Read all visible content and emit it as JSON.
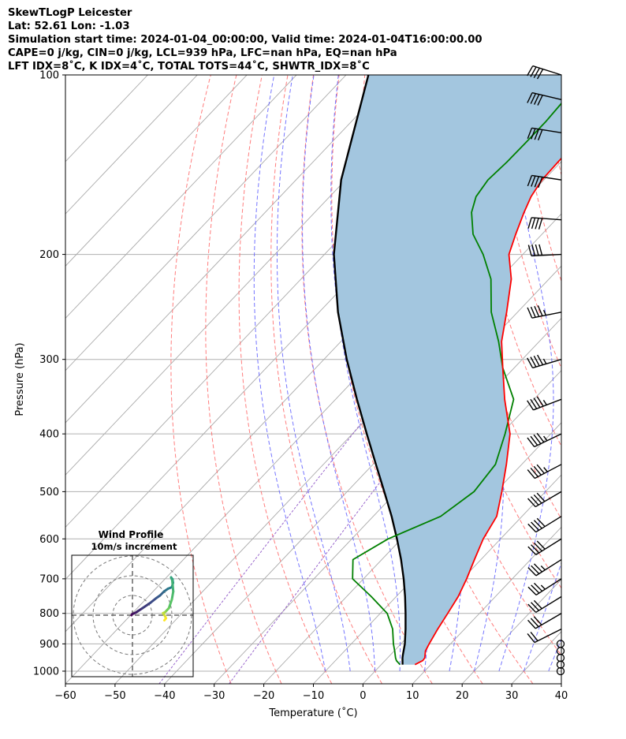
{
  "header": {
    "line1": "SkewTLogP Leicester",
    "line2": "Lat: 52.61   Lon: -1.03",
    "line3": "Simulation start time: 2024-01-04_00:00:00, Valid time: 2024-01-04T16:00:00.00",
    "line4": "CAPE=0 j/kg, CIN=0 j/kg, LCL=939 hPa, LFC=nan hPa, EQ=nan hPa",
    "line5": "LFT IDX=8˚C, K IDX=4˚C, TOTAL TOTS=44˚C, SHWTR_IDX=8˚C"
  },
  "chart_data": [
    {
      "type": "line",
      "subtype": "skew-t log-p",
      "xlabel": "Temperature (˚C)",
      "ylabel": "Pressure (hPa)",
      "xlim": [
        -60,
        40
      ],
      "ylim": [
        1050,
        100
      ],
      "y_scale": "log",
      "x_ticks": [
        "−60",
        "−50",
        "−40",
        "−30",
        "−20",
        "−10",
        "0",
        "10",
        "20",
        "30",
        "40"
      ],
      "y_ticks": [
        "100",
        "200",
        "300",
        "400",
        "500",
        "600",
        "700",
        "800",
        "900",
        "1000"
      ],
      "colors": {
        "temperature": "#ff0000",
        "dewpoint": "#008000",
        "parcel": "#000000",
        "shading": "#a3c6df",
        "dry_adiabat": "#ff6666",
        "moist_adiabat": "#6666ff",
        "mixing_ratio": "#9966cc",
        "isotherm": "#aaaaaa"
      },
      "series": [
        {
          "key": "temperature",
          "pressure": [
            975,
            960,
            950,
            925,
            900,
            850,
            800,
            750,
            700,
            650,
            600,
            550,
            500,
            450,
            400,
            350,
            310,
            280,
            250,
            220,
            200,
            185,
            170,
            160,
            150,
            140,
            130,
            120,
            110,
            100
          ],
          "values": [
            6.8,
            7.6,
            7.5,
            6.3,
            5.7,
            4.6,
            3.6,
            2.5,
            0.8,
            -1.3,
            -3.5,
            -5.1,
            -8.8,
            -13.1,
            -18.2,
            -25.9,
            -32.3,
            -37.6,
            -42.2,
            -47.6,
            -52.8,
            -55.3,
            -57.8,
            -59.4,
            -60.4,
            -60.6,
            -60.7,
            -60.5,
            -60.8,
            -61.9
          ]
        },
        {
          "key": "dewpoint",
          "pressure": [
            975,
            960,
            950,
            925,
            900,
            850,
            800,
            750,
            700,
            650,
            600,
            550,
            500,
            450,
            400,
            350,
            310,
            280,
            250,
            220,
            200,
            185,
            170,
            160,
            150,
            140,
            130,
            120,
            110,
            100
          ],
          "values": [
            3.8,
            2.3,
            1.6,
            0.1,
            -1.5,
            -4.5,
            -8.6,
            -15.0,
            -22.2,
            -25.8,
            -22.7,
            -16.4,
            -14.4,
            -15.3,
            -19.2,
            -24.1,
            -32.3,
            -38.2,
            -45.3,
            -51.7,
            -58.0,
            -63.9,
            -68.4,
            -70.5,
            -71.3,
            -70.9,
            -70.8,
            -70.8,
            -71.2,
            -72.2
          ]
        },
        {
          "key": "parcel",
          "pressure": [
            975,
            950,
            939,
            900,
            850,
            800,
            750,
            700,
            650,
            600,
            550,
            500,
            450,
            400,
            350,
            300,
            250,
            200,
            150,
            100
          ],
          "values": [
            4.3,
            3.0,
            2.5,
            0.8,
            -1.9,
            -4.9,
            -8.2,
            -11.9,
            -16.1,
            -20.9,
            -26.3,
            -32.5,
            -39.4,
            -47.1,
            -55.7,
            -65.4,
            -76.2,
            -88.1,
            -100.9,
            -115.5
          ]
        }
      ],
      "wind_barbs": {
        "pressure": [
          1000,
          975,
          950,
          925,
          900,
          850,
          800,
          750,
          700,
          650,
          600,
          550,
          500,
          450,
          400,
          350,
          300,
          250,
          200,
          175,
          150,
          125,
          110,
          100
        ],
        "u_kt": [
          0,
          0,
          0,
          0,
          0,
          20,
          24,
          26,
          28,
          30,
          32,
          34,
          36,
          38,
          40,
          42,
          44,
          46,
          42,
          40,
          40,
          38,
          38,
          38
        ],
        "v_kt": [
          0,
          0,
          0,
          0,
          0,
          10,
          14,
          16,
          18,
          19,
          20,
          21,
          21,
          20,
          19,
          16,
          13,
          9,
          2,
          -3,
          -6,
          -6,
          -9,
          -12
        ]
      }
    },
    {
      "type": "line",
      "subtype": "hodograph",
      "title": "Wind Profile",
      "subtitle": "10m/s increment",
      "ring_interval": 10,
      "u": [
        -0.5,
        0,
        1.5,
        3,
        5,
        9,
        12,
        14,
        16,
        18,
        20,
        20.6,
        20.3,
        19.6,
        20.2,
        20.7,
        20.0,
        18.5,
        17.0,
        16.5,
        15.5,
        16.5,
        17.0,
        16.2
      ],
      "v": [
        0,
        0.6,
        1.2,
        2.2,
        3.5,
        6.2,
        8.6,
        10.0,
        12.0,
        13.4,
        14.2,
        16.4,
        18.3,
        19.2,
        17.6,
        12.0,
        8.0,
        3.6,
        2.0,
        1.5,
        1.0,
        -0.4,
        -1.6,
        -2.6
      ]
    }
  ]
}
